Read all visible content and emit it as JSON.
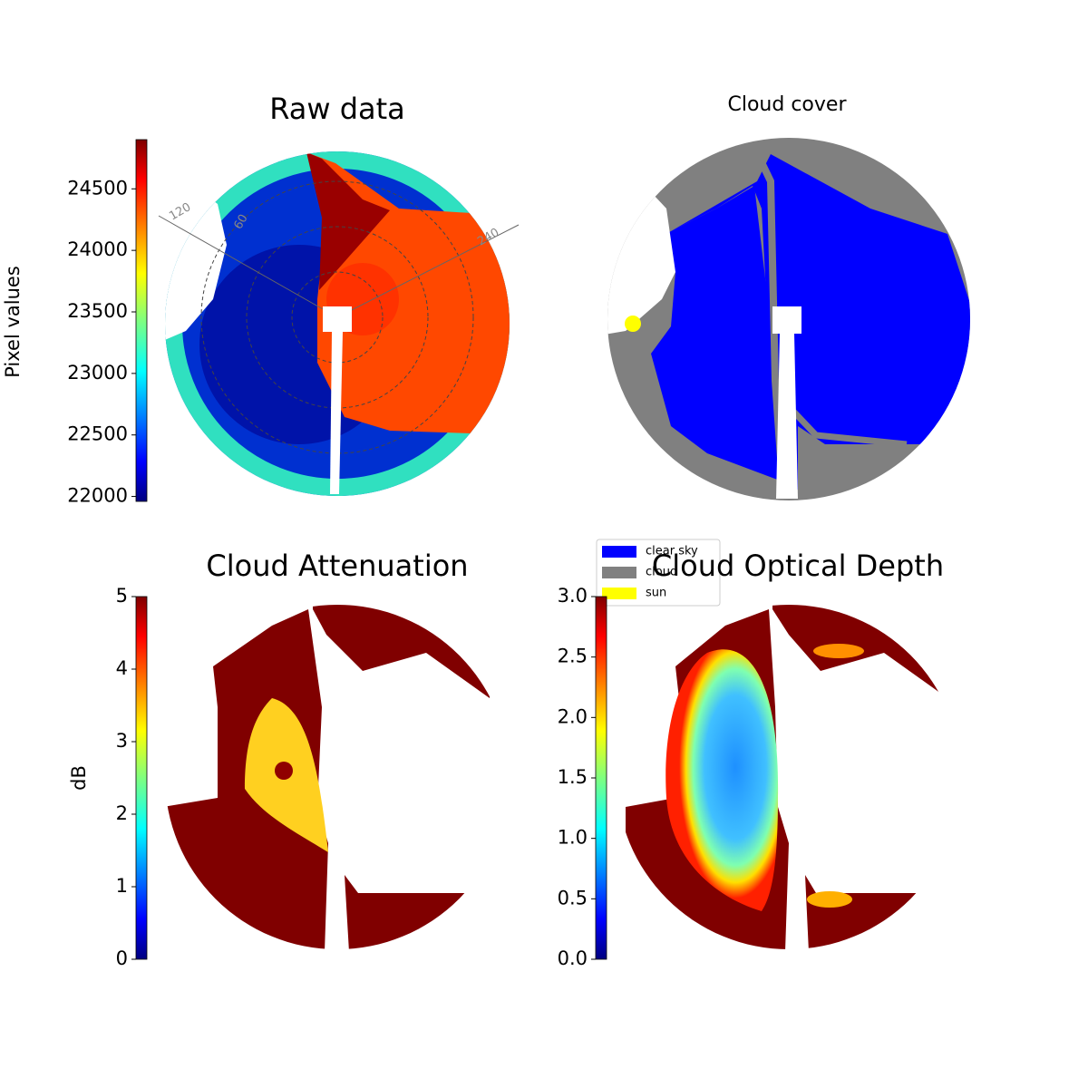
{
  "chart_data": [
    {
      "type": "image",
      "title": "Raw data",
      "ylabel": "Pixel values",
      "colormap": "jet",
      "ylim": [
        21960,
        24900
      ],
      "yticks": [
        22000,
        22500,
        23000,
        23500,
        24000,
        24500
      ],
      "annotations": [
        "120",
        "60",
        "240"
      ]
    },
    {
      "type": "image",
      "title": "Cloud cover",
      "legend": [
        {
          "name": "clear sky",
          "color": "#0000ff"
        },
        {
          "name": "cloud",
          "color": "#808080"
        },
        {
          "name": "sun",
          "color": "#ffff00"
        }
      ]
    },
    {
      "type": "image",
      "title": "Cloud Attenuation",
      "ylabel": "dB",
      "colormap": "jet",
      "ylim": [
        0,
        5
      ],
      "yticks": [
        0,
        1,
        2,
        3,
        4,
        5
      ]
    },
    {
      "type": "image",
      "title": "Cloud Optical Depth",
      "colormap": "jet",
      "ylim": [
        0,
        3
      ],
      "yticks": [
        {
          "value": 0,
          "label": "0.0"
        },
        0.5,
        {
          "value": 1,
          "label": "1.0"
        },
        1.5,
        {
          "value": 2,
          "label": "2.0"
        },
        2.5,
        {
          "value": 3,
          "label": "3.0"
        }
      ]
    }
  ]
}
